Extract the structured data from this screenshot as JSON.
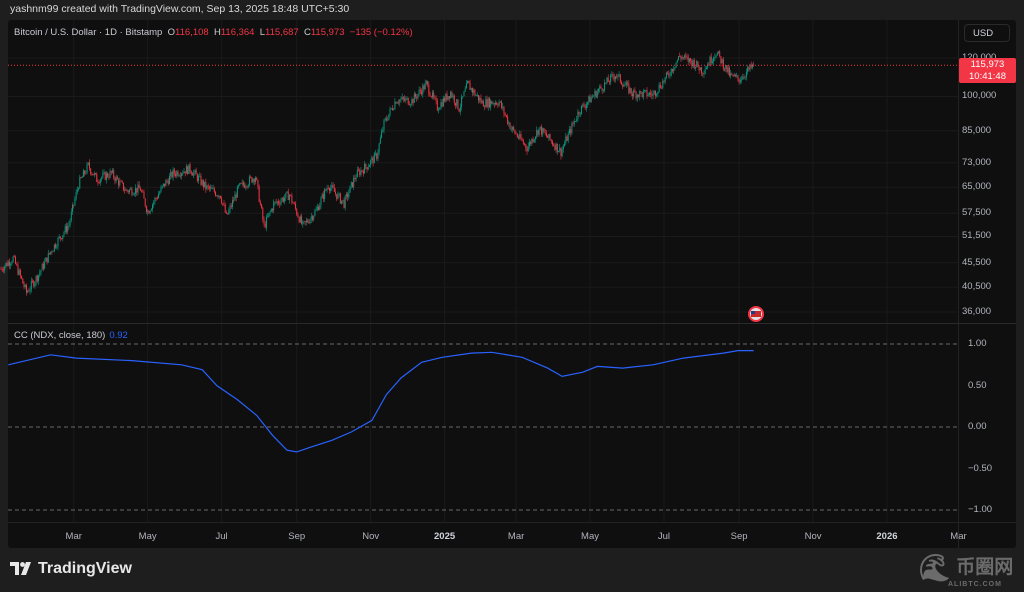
{
  "credit": "yashnm99 created with TradingView.com, Sep 13, 2025 18:48 UTC+5:30",
  "legend": {
    "symbol": "Bitcoin / U.S. Dollar · 1D · Bitstamp",
    "o_label": "O",
    "open": "116,108",
    "h_label": "H",
    "high": "116,364",
    "l_label": "L",
    "low": "115,687",
    "c_label": "C",
    "close": "115,973",
    "change": "−135 (−0.12%)"
  },
  "currency": "USD",
  "last_price": {
    "price": "115,973",
    "countdown": "10:41:48"
  },
  "indicator_legend": {
    "name": "CC (NDX, close, 180)",
    "value": "0.92"
  },
  "brand": "TradingView",
  "watermark": {
    "text": "币圈网",
    "sub": "ALIBTC.COM"
  },
  "colors": {
    "up": "#089981",
    "down": "#f23645",
    "indicator": "#2962ff",
    "price_line": "#f23645"
  },
  "icons": {
    "brand_logo": "tradingview-logo-icon",
    "event_marker": "us-flag-icon"
  },
  "chart_data": [
    {
      "type": "candlestick",
      "title": "Bitcoin / U.S. Dollar · 1D · Bitstamp",
      "y_scale": "log",
      "ylim": [
        35000,
        135000
      ],
      "y_ticks": [
        "120,000",
        "100,000",
        "85,000",
        "73,000",
        "65,000",
        "57,500",
        "51,500",
        "45,500",
        "40,500",
        "36,000"
      ],
      "y_tick_values": [
        120000,
        100000,
        85000,
        73000,
        65000,
        57500,
        51500,
        45500,
        40500,
        36000
      ],
      "x_ticks": [
        {
          "label": "Mar",
          "date": "2024-03-01"
        },
        {
          "label": "May",
          "date": "2024-05-01"
        },
        {
          "label": "Jul",
          "date": "2024-07-01"
        },
        {
          "label": "Sep",
          "date": "2024-09-01"
        },
        {
          "label": "Nov",
          "date": "2024-11-01"
        },
        {
          "label": "2025",
          "date": "2025-01-01",
          "year": true
        },
        {
          "label": "Mar",
          "date": "2025-03-01"
        },
        {
          "label": "May",
          "date": "2025-05-01"
        },
        {
          "label": "Jul",
          "date": "2025-07-01"
        },
        {
          "label": "Sep",
          "date": "2025-09-01"
        },
        {
          "label": "Nov",
          "date": "2025-11-01"
        },
        {
          "label": "2026",
          "date": "2026-01-01",
          "year": true
        },
        {
          "label": "Mar",
          "date": "2026-03-01"
        }
      ],
      "grid": true,
      "last_price": 115973,
      "close_series": [
        [
          "2024-01-01",
          44200
        ],
        [
          "2024-01-11",
          46500
        ],
        [
          "2024-01-22",
          39500
        ],
        [
          "2024-02-01",
          43000
        ],
        [
          "2024-02-12",
          48500
        ],
        [
          "2024-02-26",
          54500
        ],
        [
          "2024-03-05",
          66000
        ],
        [
          "2024-03-13",
          72000
        ],
        [
          "2024-03-20",
          67500
        ],
        [
          "2024-04-01",
          69500
        ],
        [
          "2024-04-13",
          64000
        ],
        [
          "2024-04-25",
          64500
        ],
        [
          "2024-05-01",
          58000
        ],
        [
          "2024-05-15",
          66000
        ],
        [
          "2024-05-22",
          69500
        ],
        [
          "2024-06-05",
          71000
        ],
        [
          "2024-06-18",
          65000
        ],
        [
          "2024-06-30",
          62700
        ],
        [
          "2024-07-05",
          56500
        ],
        [
          "2024-07-15",
          64800
        ],
        [
          "2024-07-29",
          68500
        ],
        [
          "2024-08-05",
          54000
        ],
        [
          "2024-08-13",
          60000
        ],
        [
          "2024-08-26",
          62800
        ],
        [
          "2024-09-06",
          54000
        ],
        [
          "2024-09-17",
          58200
        ],
        [
          "2024-09-27",
          65800
        ],
        [
          "2024-10-10",
          60200
        ],
        [
          "2024-10-20",
          69000
        ],
        [
          "2024-10-29",
          72000
        ],
        [
          "2024-11-06",
          75600
        ],
        [
          "2024-11-12",
          88000
        ],
        [
          "2024-11-22",
          98500
        ],
        [
          "2024-12-05",
          98000
        ],
        [
          "2024-12-17",
          106000
        ],
        [
          "2024-12-26",
          95000
        ],
        [
          "2025-01-06",
          102000
        ],
        [
          "2025-01-13",
          94500
        ],
        [
          "2025-01-20",
          106000
        ],
        [
          "2025-02-01",
          97000
        ],
        [
          "2025-02-15",
          97500
        ],
        [
          "2025-02-25",
          86000
        ],
        [
          "2025-03-10",
          78500
        ],
        [
          "2025-03-20",
          86000
        ],
        [
          "2025-04-07",
          77000
        ],
        [
          "2025-04-22",
          93500
        ],
        [
          "2025-05-08",
          103000
        ],
        [
          "2025-05-22",
          111000
        ],
        [
          "2025-06-05",
          101500
        ],
        [
          "2025-06-22",
          101000
        ],
        [
          "2025-07-03",
          109500
        ],
        [
          "2025-07-14",
          121000
        ],
        [
          "2025-07-25",
          117500
        ],
        [
          "2025-08-02",
          113000
        ],
        [
          "2025-08-13",
          123500
        ],
        [
          "2025-08-25",
          110000
        ],
        [
          "2025-09-01",
          108500
        ],
        [
          "2025-09-13",
          115973
        ]
      ]
    },
    {
      "type": "line",
      "title": "CC (NDX, close, 180)",
      "ylim": [
        -1.1,
        1.1
      ],
      "y_ticks": [
        "1.00",
        "0.50",
        "0.00",
        "−0.50",
        "−1.00"
      ],
      "y_tick_values": [
        1,
        0.5,
        0,
        -0.5,
        -1
      ],
      "series": [
        {
          "name": "CC (NDX, close, 180)",
          "points": [
            [
              "2024-01-07",
              0.75
            ],
            [
              "2024-02-11",
              0.87
            ],
            [
              "2024-03-03",
              0.83
            ],
            [
              "2024-04-18",
              0.8
            ],
            [
              "2024-05-29",
              0.75
            ],
            [
              "2024-06-15",
              0.69
            ],
            [
              "2024-06-27",
              0.5
            ],
            [
              "2024-07-14",
              0.33
            ],
            [
              "2024-07-30",
              0.14
            ],
            [
              "2024-08-12",
              -0.1
            ],
            [
              "2024-08-24",
              -0.28
            ],
            [
              "2024-09-01",
              -0.3
            ],
            [
              "2024-09-13",
              -0.24
            ],
            [
              "2024-09-30",
              -0.16
            ],
            [
              "2024-10-16",
              -0.06
            ],
            [
              "2024-11-02",
              0.08
            ],
            [
              "2024-11-14",
              0.39
            ],
            [
              "2024-11-26",
              0.59
            ],
            [
              "2024-12-13",
              0.78
            ],
            [
              "2024-12-30",
              0.84
            ],
            [
              "2025-01-23",
              0.89
            ],
            [
              "2025-02-09",
              0.9
            ],
            [
              "2025-03-06",
              0.84
            ],
            [
              "2025-03-27",
              0.71
            ],
            [
              "2025-04-08",
              0.61
            ],
            [
              "2025-04-25",
              0.66
            ],
            [
              "2025-05-07",
              0.73
            ],
            [
              "2025-05-28",
              0.71
            ],
            [
              "2025-06-22",
              0.75
            ],
            [
              "2025-07-17",
              0.83
            ],
            [
              "2025-08-19",
              0.89
            ],
            [
              "2025-08-31",
              0.92
            ],
            [
              "2025-09-13",
              0.92
            ]
          ]
        }
      ]
    }
  ]
}
